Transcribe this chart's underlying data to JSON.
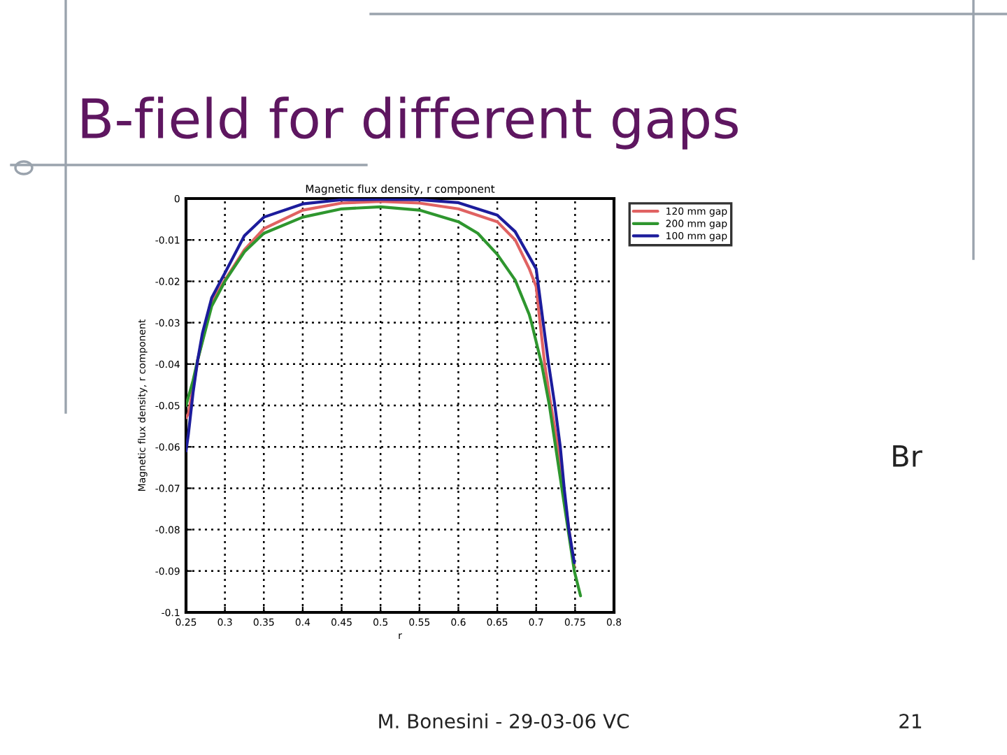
{
  "chart_data": {
    "type": "line",
    "title": "B-field for different gaps",
    "subtitle": "Magnetic flux density, r component",
    "xlabel": "r",
    "ylabel": "Magnetic flux density, r component",
    "annotations": [
      "Br",
      "M. Bonesini - 29-03-06 VC",
      "21"
    ],
    "xlim": [
      0.25,
      0.8
    ],
    "xticks": [
      0.25,
      0.3,
      0.35,
      0.4,
      0.45,
      0.5,
      0.55,
      0.6,
      0.65,
      0.7,
      0.75,
      0.8
    ],
    "ylim": [
      -0.1,
      0
    ],
    "yticks": [
      0,
      -0.01,
      -0.02,
      -0.03,
      -0.04,
      -0.05,
      -0.06,
      -0.07,
      -0.08,
      -0.09,
      -0.1
    ],
    "grid": true,
    "legend": "top right",
    "line_style": "solid",
    "series": [
      {
        "name": "120 mm gap",
        "color": "#e06262",
        "x": [
          0.25,
          0.253,
          0.259,
          0.265,
          0.283,
          0.3,
          0.325,
          0.35,
          0.4,
          0.45,
          0.5,
          0.55,
          0.6,
          0.65,
          0.673,
          0.691,
          0.7,
          0.705,
          0.711,
          0.719,
          0.728,
          0.735,
          0.742,
          0.749
        ],
        "values": [
          -0.053,
          -0.052,
          -0.046,
          -0.039,
          -0.025,
          -0.0197,
          -0.0124,
          -0.0073,
          -0.0028,
          -0.0011,
          -0.0007,
          -0.0011,
          -0.0025,
          -0.0056,
          -0.01,
          -0.0169,
          -0.0213,
          -0.03,
          -0.04,
          -0.05,
          -0.06,
          -0.07,
          -0.08,
          -0.089
        ]
      },
      {
        "name": "200 mm gap",
        "color": "#2e962e",
        "x": [
          0.25,
          0.259,
          0.265,
          0.283,
          0.3,
          0.325,
          0.35,
          0.4,
          0.45,
          0.5,
          0.55,
          0.6,
          0.625,
          0.65,
          0.673,
          0.691,
          0.694,
          0.707,
          0.717,
          0.725,
          0.733,
          0.741,
          0.749,
          0.757
        ],
        "values": [
          -0.05,
          -0.044,
          -0.039,
          -0.026,
          -0.02,
          -0.0129,
          -0.0084,
          -0.0045,
          -0.0025,
          -0.002,
          -0.0028,
          -0.0056,
          -0.0084,
          -0.0135,
          -0.0197,
          -0.028,
          -0.03,
          -0.04,
          -0.05,
          -0.06,
          -0.07,
          -0.08,
          -0.09,
          -0.096
        ]
      },
      {
        "name": "100 mm gap",
        "color": "#1c1c9c",
        "x": [
          0.25,
          0.253,
          0.259,
          0.265,
          0.271,
          0.283,
          0.292,
          0.3,
          0.325,
          0.35,
          0.4,
          0.45,
          0.5,
          0.55,
          0.6,
          0.65,
          0.673,
          0.7,
          0.709,
          0.716,
          0.724,
          0.731,
          0.736,
          0.742,
          0.749
        ],
        "values": [
          -0.061,
          -0.057,
          -0.047,
          -0.039,
          -0.0326,
          -0.024,
          -0.0208,
          -0.018,
          -0.009,
          -0.0045,
          -0.0013,
          -0.0003,
          -0.0002,
          -0.0003,
          -0.001,
          -0.004,
          -0.008,
          -0.017,
          -0.03,
          -0.04,
          -0.05,
          -0.06,
          -0.07,
          -0.08,
          -0.088
        ]
      }
    ]
  }
}
